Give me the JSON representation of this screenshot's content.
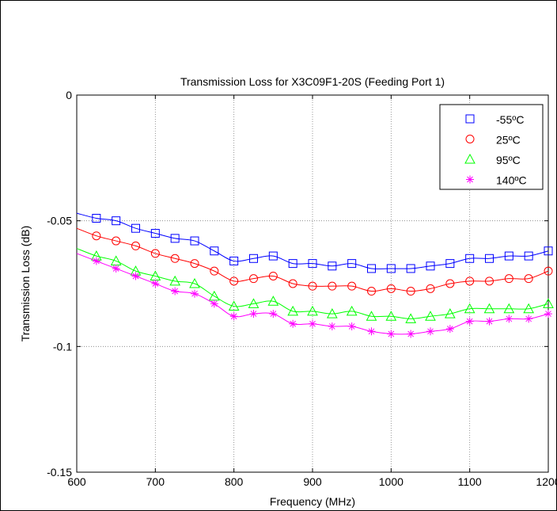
{
  "chart_data": {
    "type": "line",
    "title": "Transmission Loss for X3C09F1-20S (Feeding Port 1)",
    "xlabel": "Frequency (MHz)",
    "ylabel": "Transmission Loss (dB)",
    "xlim": [
      600,
      1200
    ],
    "ylim": [
      -0.15,
      0
    ],
    "xticks": [
      600,
      700,
      800,
      900,
      1000,
      1100,
      1200
    ],
    "xtick_labels": [
      "600",
      "700",
      "800",
      "900",
      "1000",
      "1100",
      "1200"
    ],
    "yticks": [
      -0.15,
      -0.1,
      -0.05,
      0
    ],
    "ytick_labels": [
      "-0.15",
      "-0.1",
      "-0.05",
      "0"
    ],
    "grid": true,
    "legend_position": "top-right",
    "x": [
      600,
      625,
      650,
      675,
      700,
      725,
      750,
      775,
      800,
      825,
      850,
      875,
      900,
      925,
      950,
      975,
      1000,
      1025,
      1050,
      1075,
      1100,
      1125,
      1150,
      1175,
      1200
    ],
    "series": [
      {
        "name": "-55ºC",
        "color": "#0000ff",
        "marker": "square",
        "values": [
          -0.047,
          -0.049,
          -0.05,
          -0.053,
          -0.055,
          -0.057,
          -0.058,
          -0.062,
          -0.066,
          -0.065,
          -0.064,
          -0.067,
          -0.067,
          -0.068,
          -0.067,
          -0.069,
          -0.069,
          -0.069,
          -0.068,
          -0.067,
          -0.065,
          -0.065,
          -0.064,
          -0.064,
          -0.062
        ]
      },
      {
        "name": "25ºC",
        "color": "#ff0000",
        "marker": "circle",
        "values": [
          -0.053,
          -0.056,
          -0.058,
          -0.06,
          -0.063,
          -0.065,
          -0.067,
          -0.07,
          -0.074,
          -0.073,
          -0.072,
          -0.075,
          -0.076,
          -0.076,
          -0.076,
          -0.078,
          -0.077,
          -0.078,
          -0.077,
          -0.075,
          -0.074,
          -0.074,
          -0.073,
          -0.073,
          -0.07
        ]
      },
      {
        "name": "95ºC",
        "color": "#00ff00",
        "marker": "triangle",
        "values": [
          -0.061,
          -0.064,
          -0.066,
          -0.07,
          -0.072,
          -0.074,
          -0.075,
          -0.08,
          -0.084,
          -0.083,
          -0.082,
          -0.086,
          -0.086,
          -0.087,
          -0.086,
          -0.088,
          -0.088,
          -0.089,
          -0.088,
          -0.087,
          -0.085,
          -0.085,
          -0.085,
          -0.085,
          -0.083
        ]
      },
      {
        "name": "140ºC",
        "color": "#ff00ff",
        "marker": "star",
        "values": [
          -0.063,
          -0.066,
          -0.069,
          -0.072,
          -0.075,
          -0.078,
          -0.079,
          -0.083,
          -0.088,
          -0.087,
          -0.087,
          -0.091,
          -0.091,
          -0.092,
          -0.092,
          -0.094,
          -0.095,
          -0.095,
          -0.094,
          -0.093,
          -0.09,
          -0.09,
          -0.089,
          -0.089,
          -0.087
        ]
      }
    ]
  }
}
